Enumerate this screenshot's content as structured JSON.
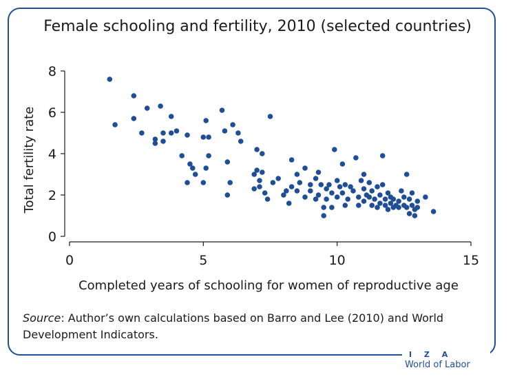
{
  "figure": {
    "title": "Female schooling and fertility, 2010 (selected countries)",
    "source_label": "Source",
    "source_text": ": Author’s own calculations based on Barro and Lee (2010) and World Development Indicators.",
    "logo_top": "I Z A",
    "logo_bottom": "World of Labor"
  },
  "chart_data": {
    "type": "scatter",
    "title": "Female schooling and fertility, 2010 (selected countries)",
    "xlabel": "Completed years of schooling for women of reproductive age",
    "ylabel": "Total fertility rate",
    "xlim": [
      0,
      15
    ],
    "ylim": [
      0,
      8
    ],
    "xticks": [
      0,
      5,
      10,
      15
    ],
    "yticks": [
      0,
      2,
      4,
      6,
      8
    ],
    "grid": false,
    "colors": {
      "point": "#1f4e96",
      "axis": "#1a1a1a"
    },
    "points": [
      [
        1.5,
        7.6
      ],
      [
        1.7,
        5.4
      ],
      [
        2.4,
        6.8
      ],
      [
        2.4,
        5.7
      ],
      [
        2.7,
        5.0
      ],
      [
        2.9,
        6.2
      ],
      [
        3.2,
        4.5
      ],
      [
        3.2,
        4.7
      ],
      [
        3.4,
        6.3
      ],
      [
        3.5,
        5.0
      ],
      [
        3.5,
        4.6
      ],
      [
        3.8,
        5.8
      ],
      [
        3.8,
        5.0
      ],
      [
        4.0,
        5.1
      ],
      [
        4.2,
        3.9
      ],
      [
        4.4,
        2.6
      ],
      [
        4.4,
        4.9
      ],
      [
        4.5,
        3.5
      ],
      [
        4.6,
        3.3
      ],
      [
        4.7,
        3.0
      ],
      [
        5.0,
        4.8
      ],
      [
        5.0,
        2.6
      ],
      [
        5.1,
        3.3
      ],
      [
        5.1,
        5.6
      ],
      [
        5.2,
        4.8
      ],
      [
        5.2,
        3.9
      ],
      [
        5.7,
        6.1
      ],
      [
        5.8,
        5.1
      ],
      [
        5.9,
        3.6
      ],
      [
        5.9,
        2.0
      ],
      [
        6.0,
        2.6
      ],
      [
        6.1,
        5.4
      ],
      [
        6.3,
        5.0
      ],
      [
        6.4,
        4.6
      ],
      [
        6.9,
        3.0
      ],
      [
        6.9,
        2.3
      ],
      [
        7.0,
        3.2
      ],
      [
        7.0,
        4.2
      ],
      [
        7.1,
        2.7
      ],
      [
        7.1,
        2.4
      ],
      [
        7.2,
        3.1
      ],
      [
        7.2,
        4.0
      ],
      [
        7.3,
        2.1
      ],
      [
        7.4,
        1.8
      ],
      [
        7.5,
        5.8
      ],
      [
        7.6,
        2.6
      ],
      [
        7.8,
        2.8
      ],
      [
        8.0,
        2.0
      ],
      [
        8.1,
        2.2
      ],
      [
        8.2,
        1.6
      ],
      [
        8.3,
        3.7
      ],
      [
        8.3,
        2.4
      ],
      [
        8.5,
        3.0
      ],
      [
        8.5,
        2.2
      ],
      [
        8.6,
        2.6
      ],
      [
        8.8,
        3.3
      ],
      [
        8.8,
        1.9
      ],
      [
        9.0,
        2.5
      ],
      [
        9.0,
        2.2
      ],
      [
        9.2,
        2.8
      ],
      [
        9.2,
        1.8
      ],
      [
        9.3,
        3.1
      ],
      [
        9.3,
        2.0
      ],
      [
        9.4,
        2.5
      ],
      [
        9.5,
        1.0
      ],
      [
        9.5,
        1.4
      ],
      [
        9.6,
        2.3
      ],
      [
        9.6,
        1.8
      ],
      [
        9.7,
        2.5
      ],
      [
        9.8,
        2.1
      ],
      [
        9.8,
        1.4
      ],
      [
        9.9,
        4.2
      ],
      [
        10.0,
        2.7
      ],
      [
        10.0,
        1.9
      ],
      [
        10.1,
        2.4
      ],
      [
        10.2,
        3.5
      ],
      [
        10.2,
        2.1
      ],
      [
        10.3,
        2.5
      ],
      [
        10.3,
        1.5
      ],
      [
        10.4,
        1.8
      ],
      [
        10.5,
        2.4
      ],
      [
        10.6,
        2.2
      ],
      [
        10.7,
        3.8
      ],
      [
        10.8,
        1.9
      ],
      [
        10.8,
        1.5
      ],
      [
        10.9,
        2.7
      ],
      [
        11.0,
        3.0
      ],
      [
        11.0,
        2.3
      ],
      [
        11.0,
        1.7
      ],
      [
        11.1,
        2.0
      ],
      [
        11.2,
        2.6
      ],
      [
        11.2,
        1.9
      ],
      [
        11.3,
        1.5
      ],
      [
        11.3,
        2.2
      ],
      [
        11.4,
        1.8
      ],
      [
        11.5,
        2.4
      ],
      [
        11.5,
        1.4
      ],
      [
        11.6,
        1.6
      ],
      [
        11.6,
        2.0
      ],
      [
        11.7,
        3.9
      ],
      [
        11.7,
        2.5
      ],
      [
        11.8,
        1.8
      ],
      [
        11.8,
        1.5
      ],
      [
        11.9,
        2.1
      ],
      [
        11.9,
        1.3
      ],
      [
        12.0,
        1.9
      ],
      [
        12.0,
        1.6
      ],
      [
        12.1,
        1.8
      ],
      [
        12.1,
        1.4
      ],
      [
        12.2,
        1.5
      ],
      [
        12.3,
        1.7
      ],
      [
        12.3,
        1.4
      ],
      [
        12.4,
        2.2
      ],
      [
        12.5,
        1.5
      ],
      [
        12.5,
        1.9
      ],
      [
        12.6,
        3.0
      ],
      [
        12.6,
        1.4
      ],
      [
        12.7,
        1.8
      ],
      [
        12.7,
        1.1
      ],
      [
        12.8,
        2.1
      ],
      [
        12.8,
        1.5
      ],
      [
        12.9,
        1.3
      ],
      [
        12.9,
        1.0
      ],
      [
        13.0,
        1.7
      ],
      [
        13.0,
        1.4
      ],
      [
        13.3,
        1.9
      ],
      [
        13.6,
        1.2
      ]
    ]
  }
}
